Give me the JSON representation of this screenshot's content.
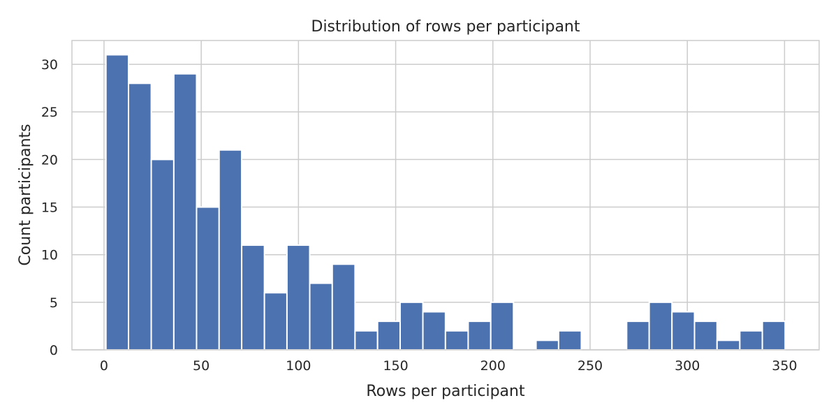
{
  "chart_data": {
    "type": "bar",
    "title": "Distribution of rows per participant",
    "xlabel": "Rows per participant",
    "ylabel": "Count participants",
    "xlim": [
      -16.5,
      367.8
    ],
    "ylim": [
      0,
      32.5
    ],
    "xticks": [
      0,
      50,
      100,
      150,
      200,
      250,
      300,
      350
    ],
    "yticks": [
      0,
      5,
      10,
      15,
      20,
      25,
      30
    ],
    "grid": true,
    "legend": "none",
    "bins": {
      "edges": [
        1.0,
        12.6,
        24.3,
        35.9,
        47.6,
        59.2,
        70.8,
        82.5,
        94.1,
        105.8,
        117.4,
        129.1,
        140.7,
        152.3,
        164.0,
        175.6,
        187.3,
        198.9,
        210.6,
        222.2,
        233.8,
        245.5,
        257.1,
        268.8,
        280.4,
        292.1,
        303.7,
        315.3,
        327.0,
        338.6,
        350.3
      ],
      "counts": [
        31,
        28,
        20,
        29,
        15,
        21,
        11,
        6,
        11,
        7,
        9,
        2,
        3,
        5,
        4,
        2,
        3,
        5,
        0,
        1,
        2,
        0,
        0,
        3,
        5,
        4,
        3,
        1,
        2,
        3
      ]
    },
    "colors": {
      "bar": "#4c72b0",
      "bar_edge": "#ffffff",
      "grid": "#cccccc",
      "spine": "#cccccc",
      "background": "#ffffff"
    }
  }
}
